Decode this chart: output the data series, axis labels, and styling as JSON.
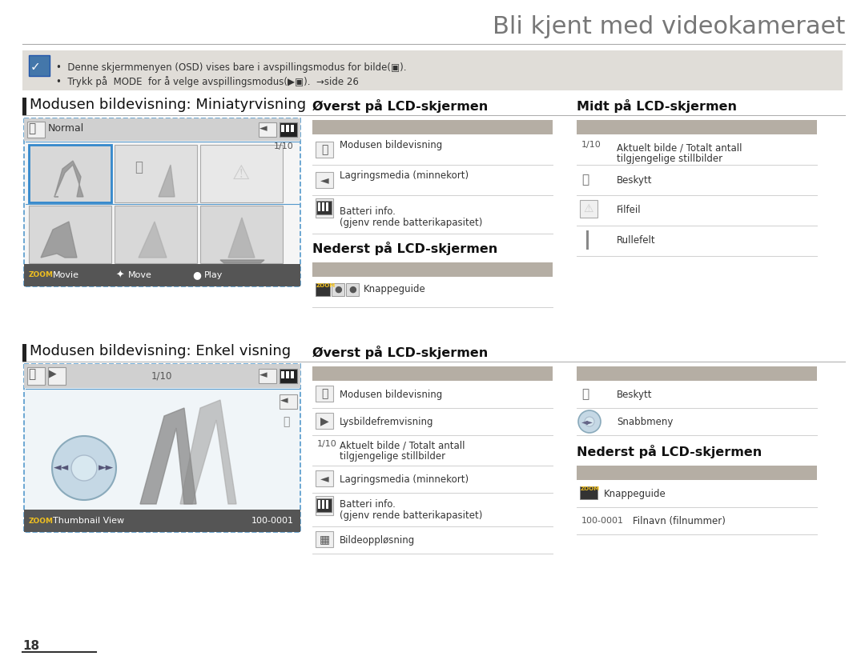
{
  "title": "Bli kjent med videokameraet",
  "bg_color": "#ffffff",
  "title_color": "#777777",
  "note_bg": "#e0ddd8",
  "note_text1": "Denne skjermmenyen (OSD) vises bare i avspillingsmodus for bilde(",
  "note_text2": "Trykk på  MODE  for å velge avspillingsmodus(",
  "note_text2b": ").  →side 26",
  "section1_title": "Modusen bildevisning: Miniatyrvisning",
  "section2_title": "Modusen bildevisning: Enkel visning",
  "col1_title1": "Øverst på LCD-skjermen",
  "col2_title1": "Midt på LCD-skjermen",
  "col1_title2": "Nederst på LCD-skjermen",
  "col1_title3": "Øverst på LCD-skjermen",
  "col2_title3": "Nederst på LCD-skjermen",
  "header_bar_color": "#b5aea4",
  "row_line_color": "#d0d0d0",
  "text_color": "#333333",
  "dashed_border_color": "#5599cc",
  "page_number": "18"
}
